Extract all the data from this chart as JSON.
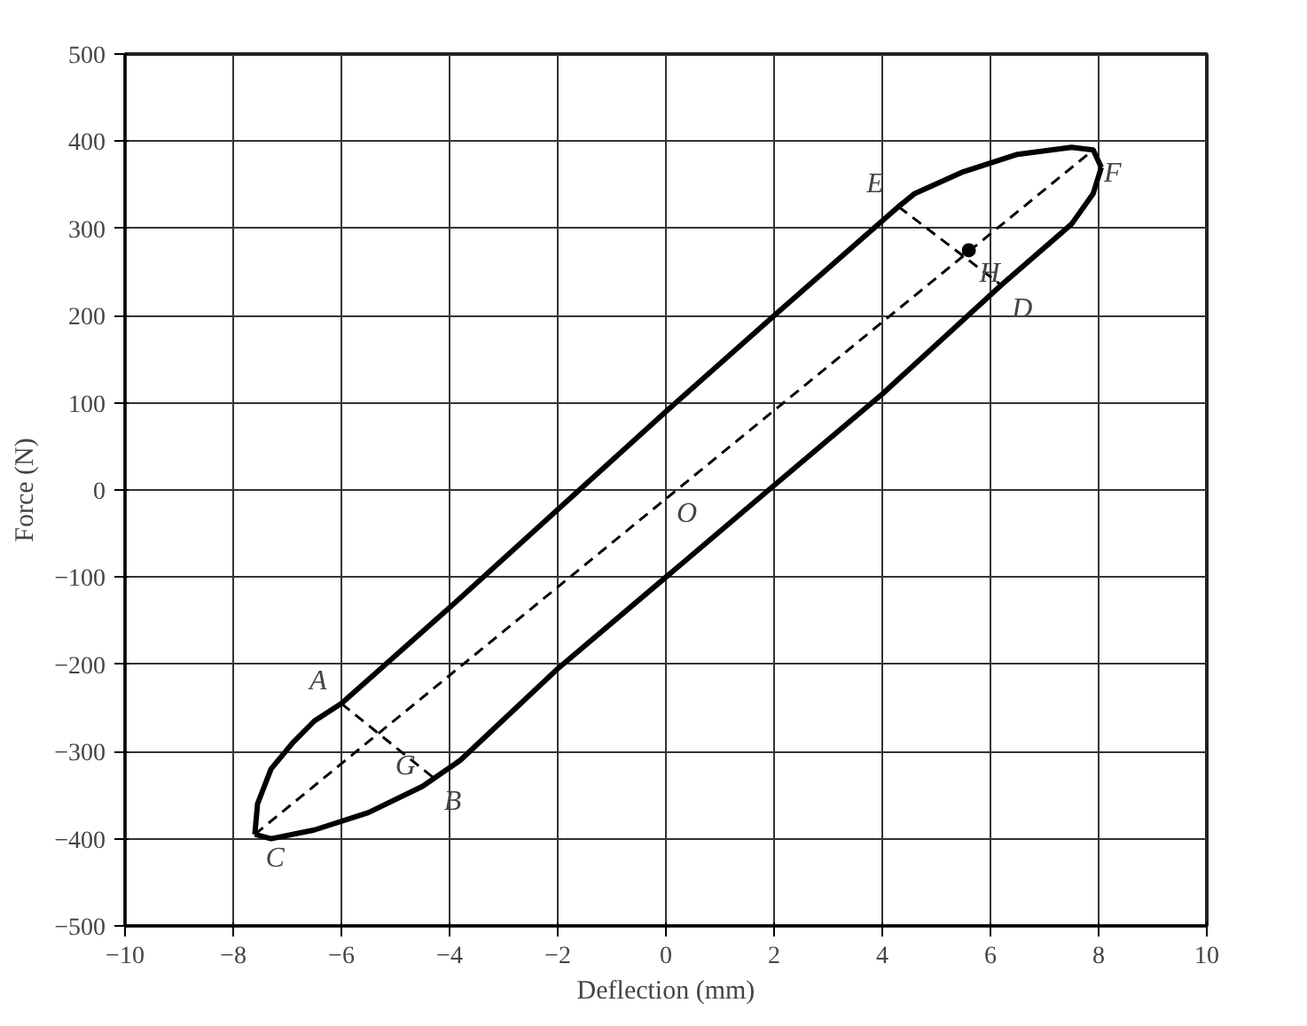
{
  "chart_data": {
    "type": "line",
    "xlabel": "Deflection (mm)",
    "ylabel": "Force (N)",
    "xlim": [
      -10,
      10
    ],
    "ylim": [
      -500,
      500
    ],
    "xticks": [
      -10,
      -8,
      -6,
      -4,
      -2,
      0,
      2,
      4,
      6,
      8,
      10
    ],
    "yticks": [
      -500,
      -400,
      -300,
      -200,
      -100,
      0,
      100,
      200,
      300,
      400,
      500
    ],
    "grid": true,
    "series": [
      {
        "color": "#000000",
        "line_style": "solid",
        "x": [
          -7.6,
          -7.55,
          -7.3,
          -6.9,
          -6.5,
          -6,
          -4,
          -1.6,
          0,
          2,
          4.3,
          4.6,
          5.5,
          6.5,
          7.5,
          7.9,
          8.05
        ],
        "values": [
          -395,
          -360,
          -320,
          -290,
          -265,
          -245,
          -135,
          0,
          90,
          200,
          325,
          340,
          365,
          385,
          393,
          390,
          370
        ]
      },
      {
        "color": "#000000",
        "line_style": "solid",
        "x": [
          8.05,
          7.9,
          7.5,
          6.2,
          4,
          1.9,
          0,
          -2,
          -3.8,
          -4.5,
          -5.5,
          -6.5,
          -7.3,
          -7.6
        ],
        "values": [
          370,
          340,
          305,
          235,
          110,
          0,
          -100,
          -205,
          -310,
          -340,
          -370,
          -390,
          -400,
          -395
        ]
      },
      {
        "color": "#000000",
        "line_style": "dashed",
        "x": [
          -7.6,
          7.9
        ],
        "values": [
          -395,
          390
        ]
      },
      {
        "color": "#000000",
        "line_style": "dashed",
        "x": [
          -6,
          -4.3
        ],
        "values": [
          -245,
          -330
        ]
      },
      {
        "color": "#000000",
        "line_style": "dashed",
        "x": [
          4.3,
          6.2
        ],
        "values": [
          325,
          235
        ]
      },
      {
        "type": "scatter",
        "color": "#000000",
        "marker": "circle",
        "x": [
          5.6
        ],
        "values": [
          275
        ]
      }
    ],
    "annotations": [
      {
        "text": "A",
        "x": -6,
        "y": -245
      },
      {
        "text": "B",
        "x": -4.3,
        "y": -330
      },
      {
        "text": "C",
        "x": -7.6,
        "y": -395
      },
      {
        "text": "D",
        "x": 6.2,
        "y": 235
      },
      {
        "text": "E",
        "x": 4.3,
        "y": 325
      },
      {
        "text": "F",
        "x": 7.9,
        "y": 390
      },
      {
        "text": "G",
        "x": -5.2,
        "y": -290
      },
      {
        "text": "H",
        "x": 5.6,
        "y": 275
      },
      {
        "text": "O",
        "x": 0,
        "y": 0
      }
    ]
  }
}
